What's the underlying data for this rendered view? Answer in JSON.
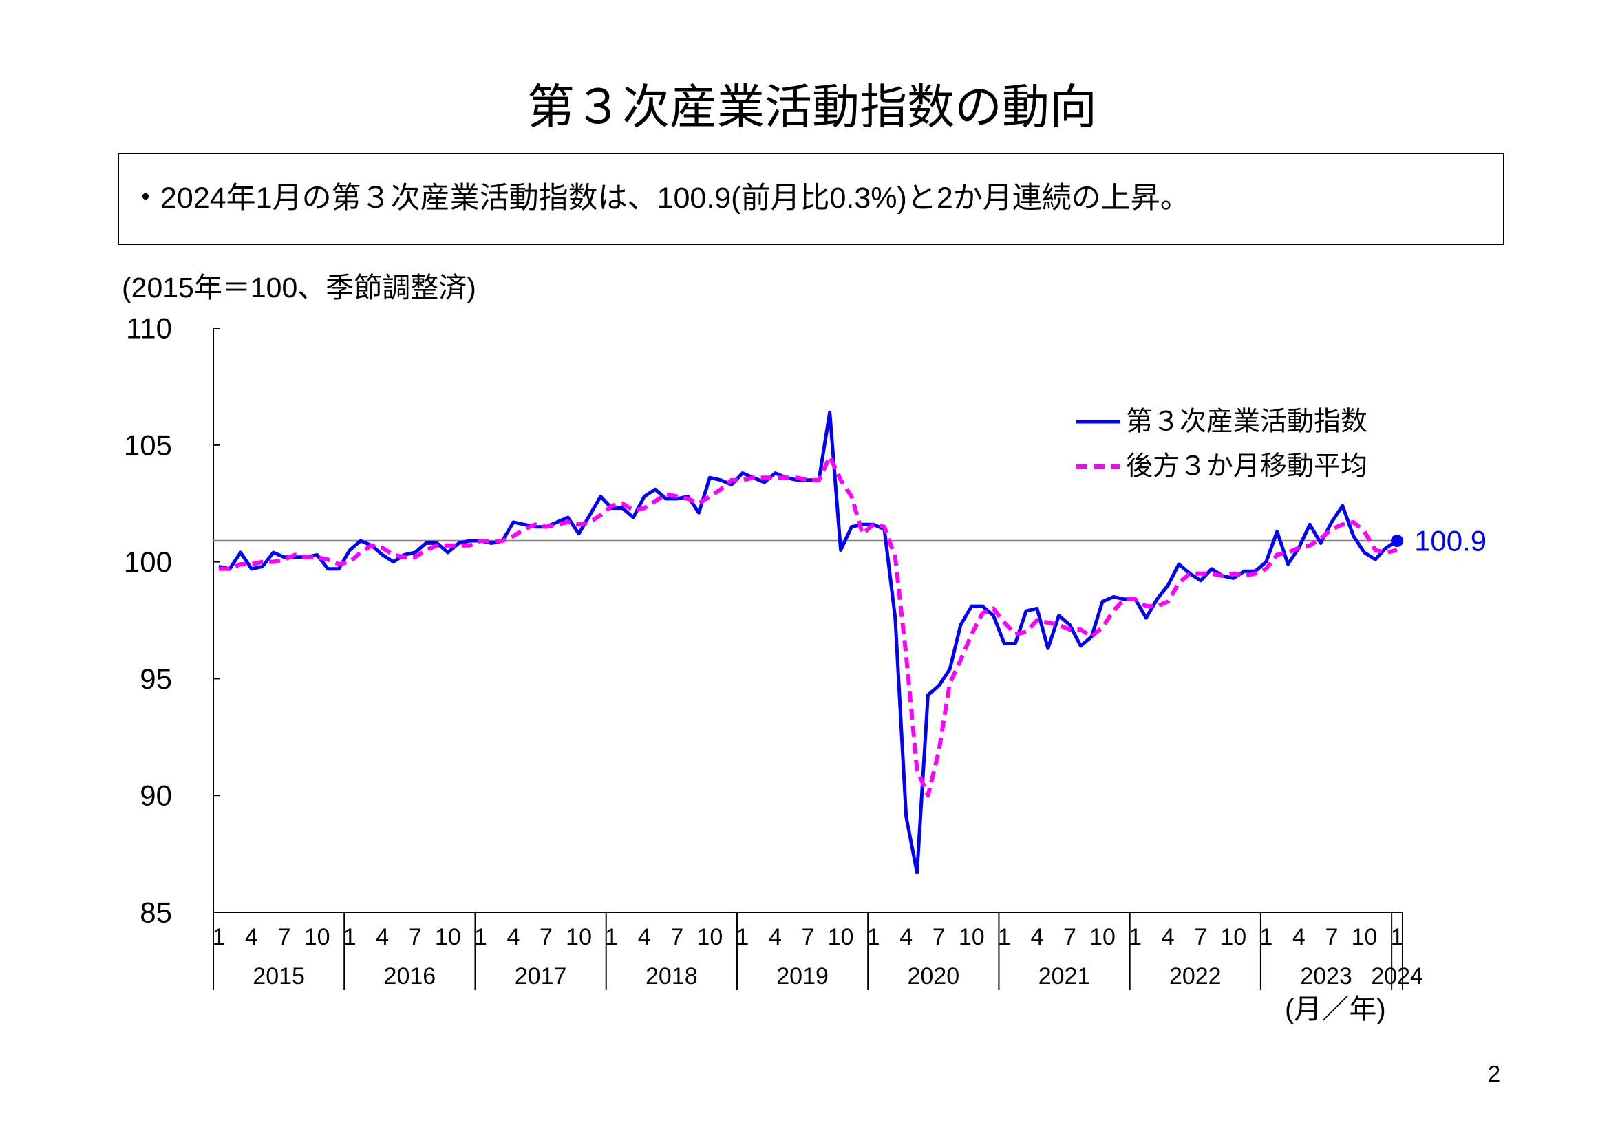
{
  "page": {
    "title": "第３次産業活動指数の動向",
    "summary": "・2024年1月の第３次産業活動指数は、100.9(前月比0.3%)と2か月連続の上昇。",
    "page_number": "2"
  },
  "chart_data": {
    "type": "line",
    "y_unit_label": "(2015年＝100、季節調整済)",
    "x_unit_label": "(月／年)",
    "ylim": [
      85,
      110
    ],
    "y_ticks": [
      110,
      105,
      100,
      95,
      90,
      85
    ],
    "x_tick_months": [
      1,
      4,
      7,
      10
    ],
    "x_year_labels": [
      "2015",
      "2016",
      "2017",
      "2018",
      "2019",
      "2020",
      "2021",
      "2022",
      "2023",
      "2024"
    ],
    "grid": false,
    "legend_position": "top-right",
    "x": [
      "2015-01",
      "2015-02",
      "2015-03",
      "2015-04",
      "2015-05",
      "2015-06",
      "2015-07",
      "2015-08",
      "2015-09",
      "2015-10",
      "2015-11",
      "2015-12",
      "2016-01",
      "2016-02",
      "2016-03",
      "2016-04",
      "2016-05",
      "2016-06",
      "2016-07",
      "2016-08",
      "2016-09",
      "2016-10",
      "2016-11",
      "2016-12",
      "2017-01",
      "2017-02",
      "2017-03",
      "2017-04",
      "2017-05",
      "2017-06",
      "2017-07",
      "2017-08",
      "2017-09",
      "2017-10",
      "2017-11",
      "2017-12",
      "2018-01",
      "2018-02",
      "2018-03",
      "2018-04",
      "2018-05",
      "2018-06",
      "2018-07",
      "2018-08",
      "2018-09",
      "2018-10",
      "2018-11",
      "2018-12",
      "2019-01",
      "2019-02",
      "2019-03",
      "2019-04",
      "2019-05",
      "2019-06",
      "2019-07",
      "2019-08",
      "2019-09",
      "2019-10",
      "2019-11",
      "2019-12",
      "2020-01",
      "2020-02",
      "2020-03",
      "2020-04",
      "2020-05",
      "2020-06",
      "2020-07",
      "2020-08",
      "2020-09",
      "2020-10",
      "2020-11",
      "2020-12",
      "2021-01",
      "2021-02",
      "2021-03",
      "2021-04",
      "2021-05",
      "2021-06",
      "2021-07",
      "2021-08",
      "2021-09",
      "2021-10",
      "2021-11",
      "2021-12",
      "2022-01",
      "2022-02",
      "2022-03",
      "2022-04",
      "2022-05",
      "2022-06",
      "2022-07",
      "2022-08",
      "2022-09",
      "2022-10",
      "2022-11",
      "2022-12",
      "2023-01",
      "2023-02",
      "2023-03",
      "2023-04",
      "2023-05",
      "2023-06",
      "2023-07",
      "2023-08",
      "2023-09",
      "2023-10",
      "2023-11",
      "2023-12",
      "2024-01"
    ],
    "series": [
      {
        "name": "第３次産業活動指数",
        "line_style": "solid",
        "color": "#0000ff",
        "values": [
          99.8,
          99.7,
          100.4,
          99.7,
          99.8,
          100.4,
          100.2,
          100.2,
          100.2,
          100.3,
          99.7,
          99.7,
          100.5,
          100.9,
          100.7,
          100.3,
          100.0,
          100.3,
          100.4,
          100.8,
          100.8,
          100.4,
          100.8,
          100.9,
          100.9,
          100.8,
          100.9,
          101.7,
          101.6,
          101.5,
          101.5,
          101.7,
          101.9,
          101.2,
          102.0,
          102.8,
          102.3,
          102.3,
          101.9,
          102.8,
          103.1,
          102.7,
          102.7,
          102.8,
          102.1,
          103.6,
          103.5,
          103.3,
          103.8,
          103.6,
          103.4,
          103.8,
          103.6,
          103.5,
          103.5,
          103.5,
          106.4,
          100.5,
          101.5,
          101.6,
          101.6,
          101.4,
          97.6,
          89.1,
          86.7,
          94.3,
          94.7,
          95.4,
          97.3,
          98.1,
          98.1,
          97.7,
          96.5,
          96.5,
          97.9,
          98.0,
          96.3,
          97.7,
          97.3,
          96.4,
          96.8,
          98.3,
          98.5,
          98.4,
          98.4,
          97.6,
          98.4,
          99.0,
          99.9,
          99.5,
          99.2,
          99.7,
          99.4,
          99.3,
          99.6,
          99.6,
          100.0,
          101.3,
          99.9,
          100.6,
          101.6,
          100.8,
          101.7,
          102.4,
          101.1,
          100.4,
          100.1,
          100.6,
          100.9
        ]
      },
      {
        "name": "後方３か月移動平均",
        "line_style": "dashed",
        "color": "#ff00ff",
        "values": [
          99.7,
          99.7,
          99.9,
          99.9,
          100.0,
          100.0,
          100.1,
          100.3,
          100.2,
          100.2,
          100.1,
          99.9,
          100.0,
          100.4,
          100.7,
          100.6,
          100.3,
          100.2,
          100.2,
          100.5,
          100.7,
          100.7,
          100.7,
          100.7,
          100.9,
          100.9,
          100.9,
          101.1,
          101.4,
          101.6,
          101.5,
          101.6,
          101.7,
          101.6,
          101.7,
          102.0,
          102.4,
          102.5,
          102.2,
          102.3,
          102.6,
          102.9,
          102.8,
          102.7,
          102.5,
          102.8,
          103.1,
          103.5,
          103.5,
          103.6,
          103.6,
          103.6,
          103.6,
          103.6,
          103.5,
          103.5,
          104.5,
          103.5,
          102.8,
          101.2,
          101.6,
          101.5,
          100.2,
          96.0,
          91.1,
          90.0,
          91.9,
          94.8,
          95.8,
          96.9,
          97.8,
          98.0,
          97.4,
          96.9,
          97.0,
          97.5,
          97.4,
          97.3,
          97.1,
          97.1,
          96.8,
          97.2,
          97.9,
          98.4,
          98.4,
          98.1,
          98.1,
          98.3,
          99.1,
          99.5,
          99.5,
          99.5,
          99.4,
          99.5,
          99.4,
          99.5,
          99.7,
          100.3,
          100.4,
          100.6,
          100.7,
          101.0,
          101.4,
          101.6,
          101.7,
          101.3,
          100.5,
          100.4,
          100.5
        ]
      }
    ],
    "reference_line": {
      "value": 100.9,
      "color": "#808080"
    },
    "annotation": {
      "x": "2024-01",
      "value": 100.9,
      "label": "100.9",
      "color": "#0000ff"
    }
  }
}
